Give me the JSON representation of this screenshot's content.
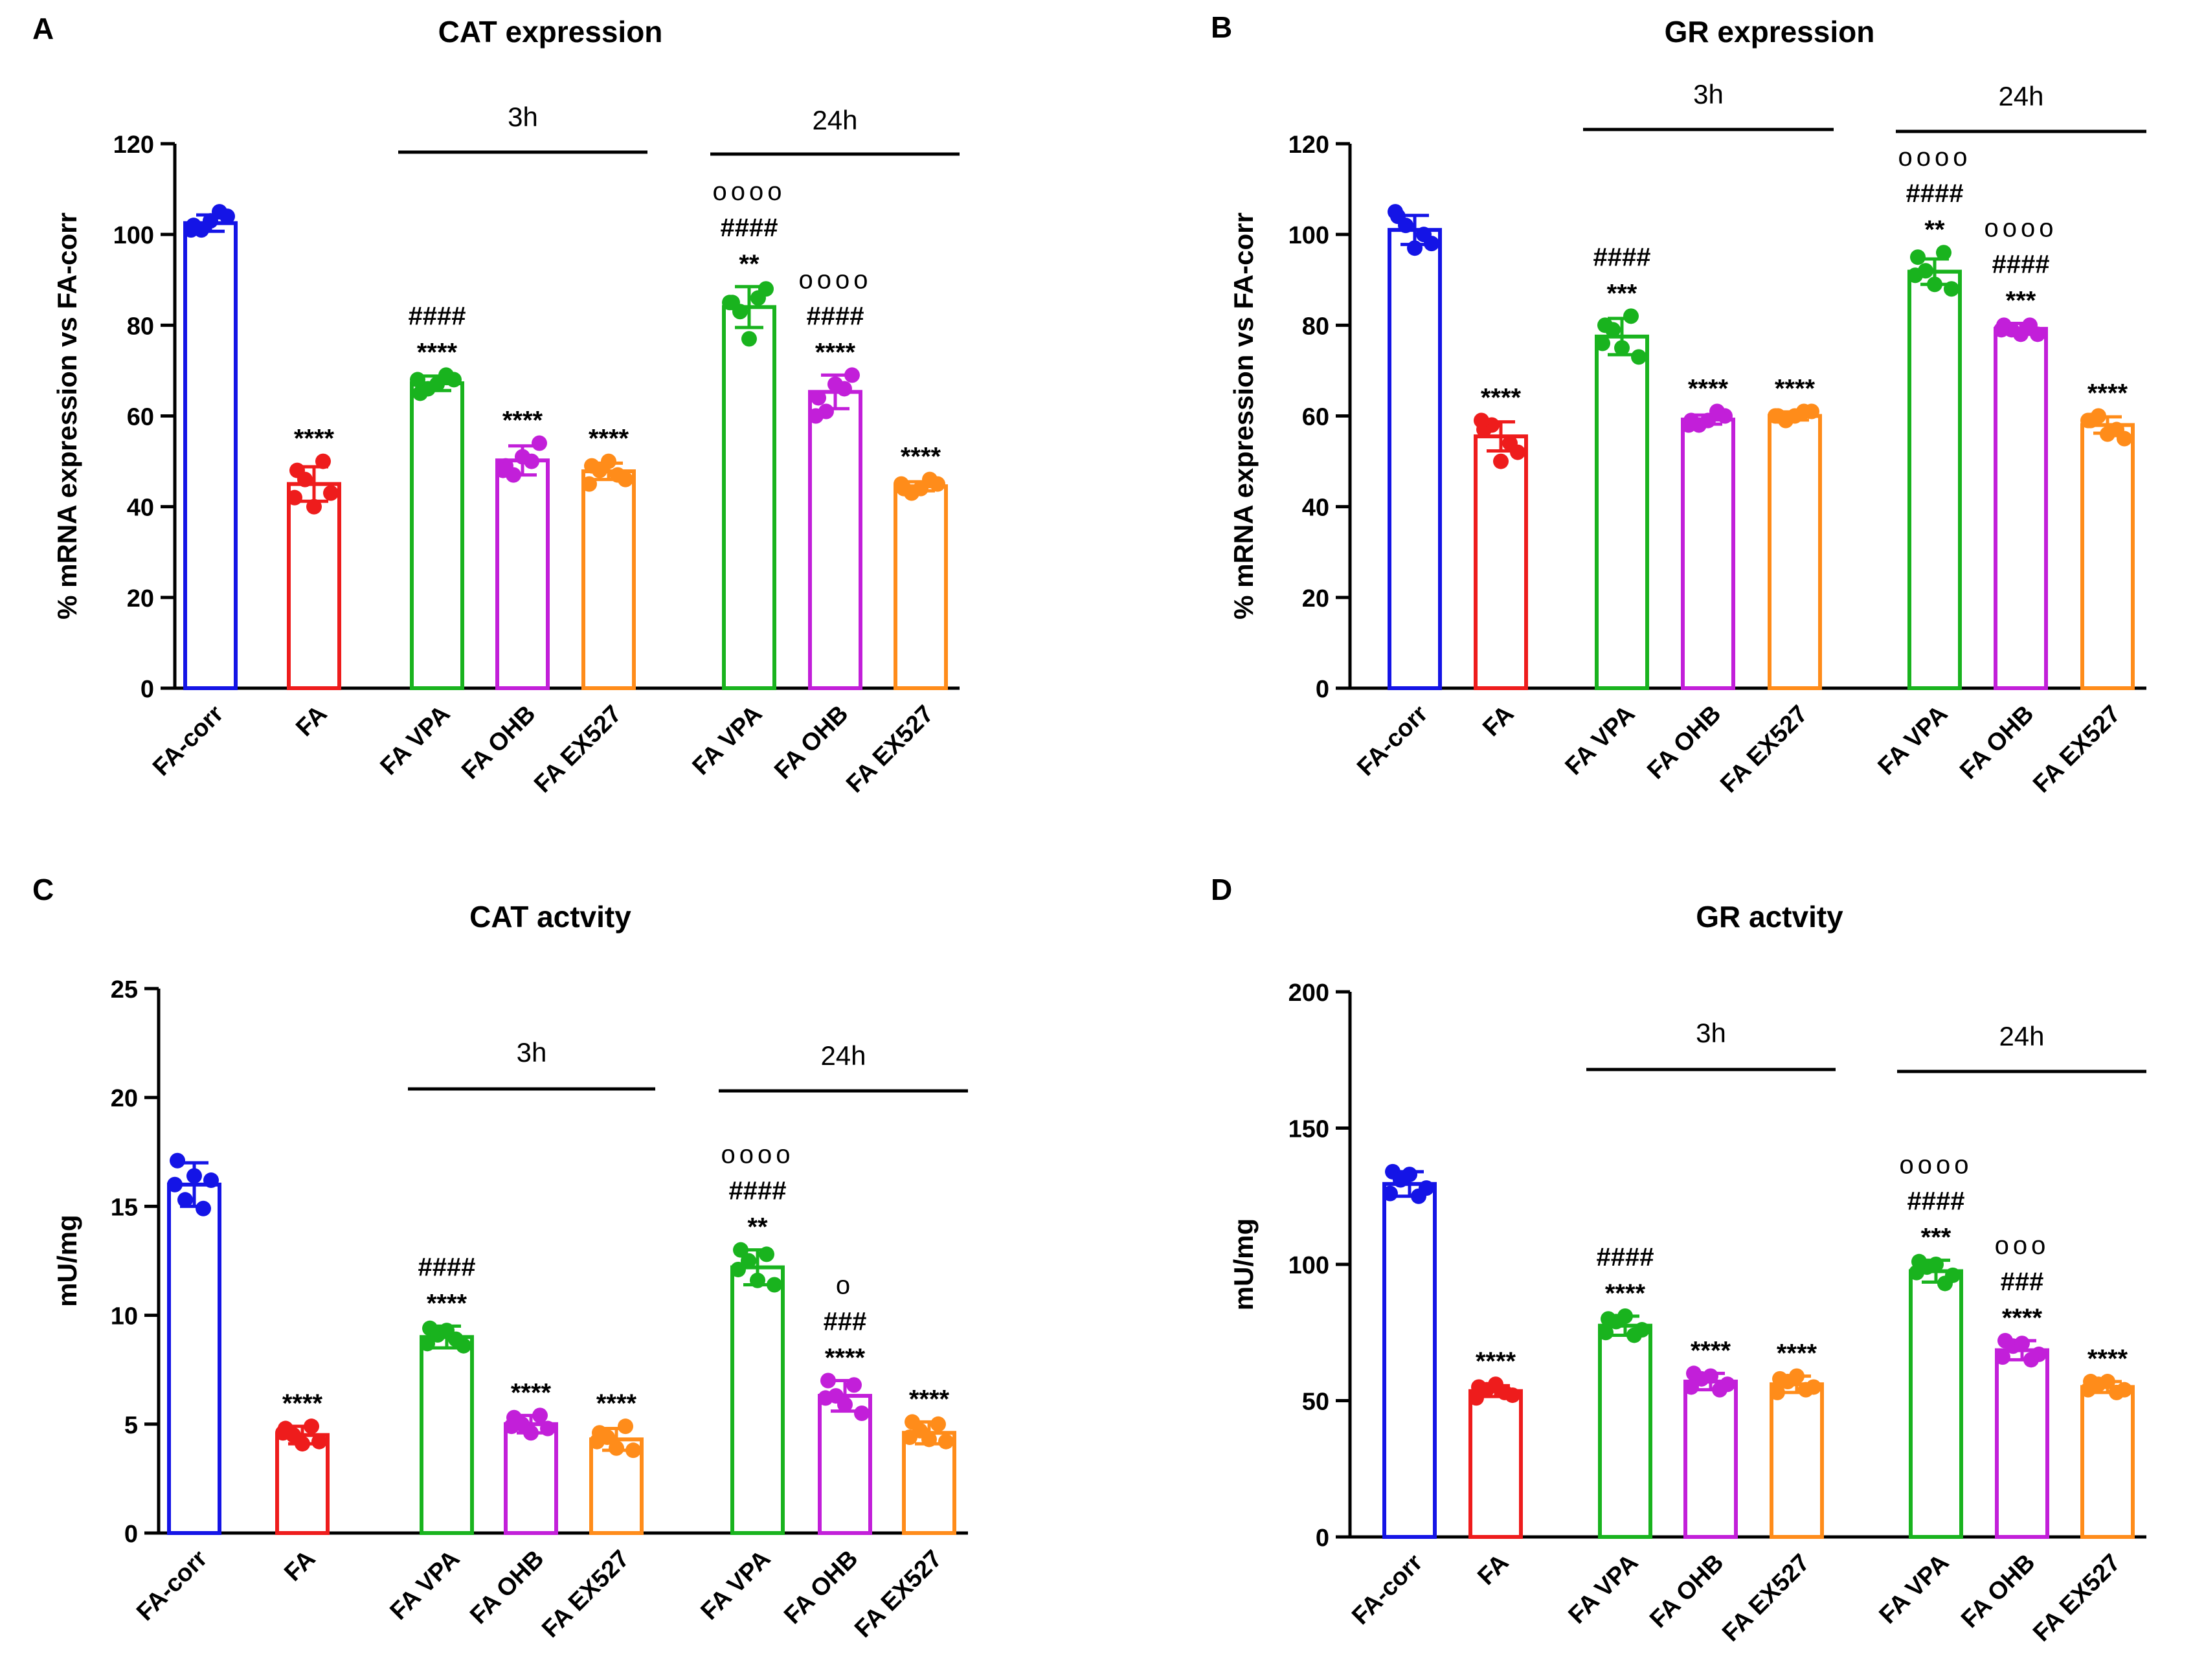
{
  "figure": {
    "categories": [
      "FA-corr",
      "FA",
      "FA VPA",
      "FA OHB",
      "FA EX527",
      "FA VPA",
      "FA OHB",
      "FA EX527"
    ],
    "colors": [
      "#1414e6",
      "#ee1c1c",
      "#19b31e",
      "#c21fd9",
      "#ff8c1a",
      "#19b31e",
      "#c21fd9",
      "#ff8c1a"
    ],
    "group_labels": [
      "3h",
      "24h"
    ]
  },
  "chart_data": [
    {
      "panel": "A",
      "type": "bar",
      "title": "CAT expression",
      "xlabel": "",
      "ylabel": "% mRNA expression vs FA-corr",
      "ylim": [
        0,
        120
      ],
      "yticks": [
        0,
        20,
        40,
        60,
        80,
        100,
        120
      ],
      "categories": [
        "FA-corr",
        "FA",
        "FA VPA",
        "FA OHB",
        "FA EX527",
        "FA VPA",
        "FA OHB",
        "FA EX527"
      ],
      "groups": [
        {
          "label": "3h",
          "from": 2,
          "to": 4
        },
        {
          "label": "24h",
          "from": 5,
          "to": 7
        }
      ],
      "values": [
        102.5,
        45,
        67.2,
        50.2,
        47.8,
        84,
        65.3,
        44.5
      ],
      "errors": [
        1.8,
        3.8,
        1.6,
        3.2,
        1.8,
        4.5,
        3.7,
        1.0
      ],
      "points": [
        [
          102,
          104,
          101,
          105,
          103,
          101
        ],
        [
          48,
          43,
          46,
          50,
          40,
          42
        ],
        [
          65,
          68,
          66,
          69,
          67,
          68
        ],
        [
          49,
          54,
          47,
          50,
          51,
          48
        ],
        [
          49,
          46,
          48,
          47,
          50,
          45
        ],
        [
          85,
          88,
          83,
          86,
          77,
          85
        ],
        [
          64,
          69,
          61,
          66,
          67,
          60
        ],
        [
          44,
          45,
          43,
          46,
          44,
          45
        ]
      ],
      "annotations": [
        [],
        [
          "****"
        ],
        [
          "####",
          "****"
        ],
        [
          "****"
        ],
        [
          "****"
        ],
        [
          "oooo",
          "####",
          "**"
        ],
        [
          "oooo",
          "####",
          "****"
        ],
        [
          "****"
        ]
      ]
    },
    {
      "panel": "B",
      "type": "bar",
      "title": "GR expression",
      "xlabel": "",
      "ylabel": "% mRNA expression vs FA-corr",
      "ylim": [
        0,
        120
      ],
      "yticks": [
        0,
        20,
        40,
        60,
        80,
        100,
        120
      ],
      "categories": [
        "FA-corr",
        "FA",
        "FA VPA",
        "FA OHB",
        "FA EX527",
        "FA VPA",
        "FA OHB",
        "FA EX527"
      ],
      "groups": [
        {
          "label": "3h",
          "from": 2,
          "to": 4
        },
        {
          "label": "24h",
          "from": 5,
          "to": 7
        }
      ],
      "values": [
        101,
        55.5,
        77.5,
        59.2,
        60,
        91.8,
        79.2,
        58
      ],
      "errors": [
        3.2,
        3.2,
        4.0,
        1.0,
        0.9,
        2.8,
        1.2,
        1.8
      ],
      "points": [
        [
          104,
          98,
          102,
          100,
          97,
          105
        ],
        [
          57,
          52,
          58,
          54,
          50,
          59
        ],
        [
          80,
          73,
          79,
          82,
          75,
          76
        ],
        [
          59,
          60,
          58,
          61,
          59,
          58
        ],
        [
          60,
          61,
          59,
          61,
          60,
          60
        ],
        [
          95,
          88,
          92,
          96,
          89,
          91
        ],
        [
          80,
          78,
          79,
          80,
          78,
          79
        ],
        [
          59,
          55,
          60,
          57,
          56,
          59
        ]
      ],
      "annotations": [
        [],
        [
          "****"
        ],
        [
          "####",
          "***"
        ],
        [
          "****"
        ],
        [
          "****"
        ],
        [
          "oooo",
          "####",
          "**"
        ],
        [
          "oooo",
          "####",
          "***"
        ],
        [
          "****"
        ]
      ]
    },
    {
      "panel": "C",
      "type": "bar",
      "title": "CAT actvity",
      "xlabel": "",
      "ylabel": "mU/mg",
      "ylim": [
        0,
        25
      ],
      "yticks": [
        0,
        5,
        10,
        15,
        20,
        25
      ],
      "categories": [
        "FA-corr",
        "FA",
        "FA VPA",
        "FA OHB",
        "FA EX527",
        "FA VPA",
        "FA OHB",
        "FA EX527"
      ],
      "groups": [
        {
          "label": "3h",
          "from": 2,
          "to": 4
        },
        {
          "label": "24h",
          "from": 5,
          "to": 7
        }
      ],
      "values": [
        16,
        4.5,
        9,
        5,
        4.3,
        12.2,
        6.3,
        4.6
      ],
      "errors": [
        1.0,
        0.4,
        0.5,
        0.4,
        0.5,
        0.8,
        0.7,
        0.5
      ],
      "points": [
        [
          17.1,
          16.2,
          15.3,
          14.9,
          16.4,
          16.0
        ],
        [
          4.8,
          4.2,
          4.5,
          4.9,
          4.1,
          4.6
        ],
        [
          9.4,
          8.6,
          9.1,
          8.9,
          9.3,
          8.7
        ],
        [
          5.3,
          4.8,
          5.0,
          5.4,
          4.6,
          4.9
        ],
        [
          4.6,
          3.8,
          4.4,
          4.9,
          3.9,
          4.2
        ],
        [
          13.0,
          11.4,
          12.5,
          12.8,
          11.6,
          12.1
        ],
        [
          7.0,
          5.5,
          6.3,
          6.8,
          5.9,
          6.2
        ],
        [
          5.1,
          4.2,
          4.7,
          5.0,
          4.3,
          4.4
        ]
      ],
      "annotations": [
        [],
        [
          "****"
        ],
        [
          "####",
          "****"
        ],
        [
          "****"
        ],
        [
          "****"
        ],
        [
          "oooo",
          "####",
          "**"
        ],
        [
          "o",
          "###",
          "****"
        ],
        [
          "****"
        ]
      ]
    },
    {
      "panel": "D",
      "type": "bar",
      "title": "GR actvity",
      "xlabel": "",
      "ylabel": "mU/mg",
      "ylim": [
        0,
        200
      ],
      "yticks": [
        0,
        50,
        100,
        150,
        200
      ],
      "categories": [
        "FA-corr",
        "FA",
        "FA VPA",
        "FA OHB",
        "FA EX527",
        "FA VPA",
        "FA OHB",
        "FA EX527"
      ],
      "groups": [
        {
          "label": "3h",
          "from": 2,
          "to": 4
        },
        {
          "label": "24h",
          "from": 5,
          "to": 7
        }
      ],
      "values": [
        129.5,
        53.5,
        77.5,
        57,
        56,
        97.5,
        68.5,
        55
      ],
      "errors": [
        4.5,
        2.0,
        3.5,
        3.0,
        3.0,
        4.0,
        3.5,
        2.0
      ],
      "points": [
        [
          134,
          128,
          131,
          125,
          133,
          126
        ],
        [
          55,
          52,
          54,
          53,
          56,
          51
        ],
        [
          80,
          76,
          79,
          74,
          81,
          75
        ],
        [
          60,
          56,
          58,
          54,
          59,
          55
        ],
        [
          58,
          55,
          57,
          54,
          59,
          53
        ],
        [
          101,
          96,
          99,
          93,
          100,
          97
        ],
        [
          72,
          67,
          70,
          65,
          71,
          66
        ],
        [
          57,
          54,
          56,
          53,
          57,
          54
        ]
      ],
      "annotations": [
        [],
        [
          "****"
        ],
        [
          "####",
          "****"
        ],
        [
          "****"
        ],
        [
          "****"
        ],
        [
          "oooo",
          "####",
          "***"
        ],
        [
          "ooo",
          "###",
          "****"
        ],
        [
          "****"
        ]
      ]
    }
  ]
}
